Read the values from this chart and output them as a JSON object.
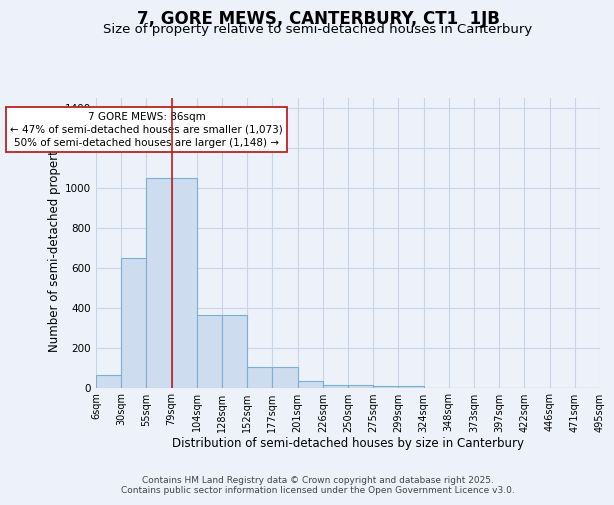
{
  "title": "7, GORE MEWS, CANTERBURY, CT1  1JB",
  "subtitle": "Size of property relative to semi-detached houses in Canterbury",
  "xlabel": "Distribution of semi-detached houses by size in Canterbury",
  "ylabel": "Number of semi-detached properties",
  "bin_labels": [
    "6sqm",
    "30sqm",
    "55sqm",
    "79sqm",
    "104sqm",
    "128sqm",
    "152sqm",
    "177sqm",
    "201sqm",
    "226sqm",
    "250sqm",
    "275sqm",
    "299sqm",
    "324sqm",
    "348sqm",
    "373sqm",
    "397sqm",
    "422sqm",
    "446sqm",
    "471sqm",
    "495sqm"
  ],
  "bar_heights": [
    65,
    650,
    1050,
    1050,
    365,
    365,
    105,
    105,
    35,
    15,
    15,
    10,
    10,
    0,
    0,
    0,
    0,
    0,
    0,
    0
  ],
  "bar_color": "#cddcee",
  "bar_edge_color": "#7bafd4",
  "grid_color": "#c8d4e8",
  "background_color": "#edf1f9",
  "red_line_x": 2.5,
  "annotation_text": "7 GORE MEWS: 86sqm\n← 47% of semi-detached houses are smaller (1,073)\n50% of semi-detached houses are larger (1,148) →",
  "annotation_box_color": "#ffffff",
  "annotation_text_color": "#000000",
  "red_line_color": "#bb2222",
  "ylim": [
    0,
    1450
  ],
  "yticks": [
    0,
    200,
    400,
    600,
    800,
    1000,
    1200,
    1400
  ],
  "footer_line1": "Contains HM Land Registry data © Crown copyright and database right 2025.",
  "footer_line2": "Contains public sector information licensed under the Open Government Licence v3.0.",
  "title_fontsize": 12,
  "subtitle_fontsize": 9.5,
  "axis_label_fontsize": 8.5,
  "tick_fontsize": 7.5,
  "footer_fontsize": 6.5
}
